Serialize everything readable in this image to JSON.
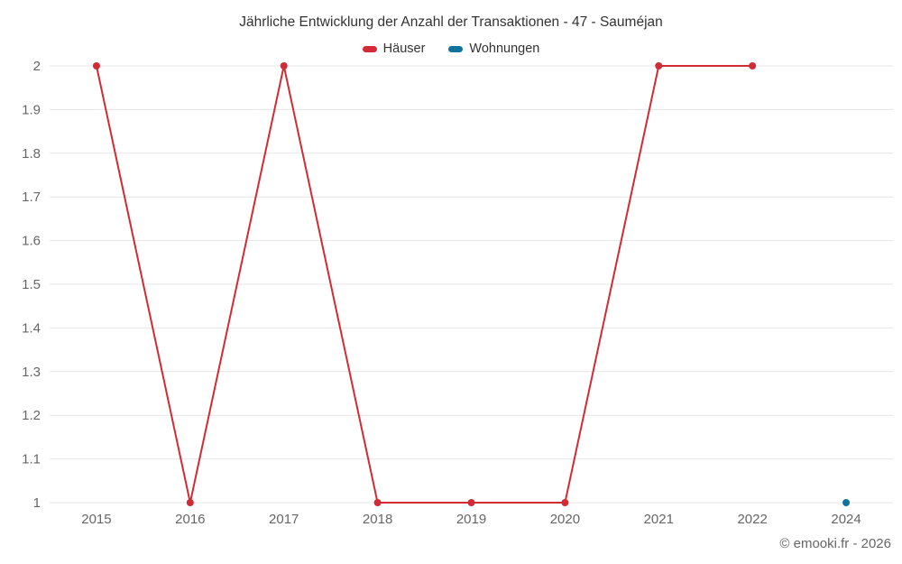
{
  "chart_data": {
    "type": "line",
    "title": "Jährliche Entwicklung der Anzahl der Transaktionen - 47 - Sauméjan",
    "categories": [
      "2015",
      "2016",
      "2017",
      "2018",
      "2019",
      "2020",
      "2021",
      "2022",
      "2024"
    ],
    "series": [
      {
        "name": "Häuser",
        "color": "#d22b35",
        "values": [
          2,
          1,
          2,
          1,
          1,
          1,
          2,
          2,
          null
        ]
      },
      {
        "name": "Wohnungen",
        "color": "#10739c",
        "values": [
          null,
          null,
          null,
          null,
          null,
          null,
          null,
          null,
          1
        ]
      }
    ],
    "ylim": [
      1,
      2
    ],
    "yticks": [
      1,
      1.1,
      1.2,
      1.3,
      1.4,
      1.5,
      1.6,
      1.7,
      1.8,
      1.9,
      2
    ],
    "grid": true,
    "gridline_color": "#e6e6e6",
    "tick_label_color": "#666666",
    "legend_position": "top"
  },
  "footer": {
    "copyright": "© emooki.fr - 2026"
  }
}
